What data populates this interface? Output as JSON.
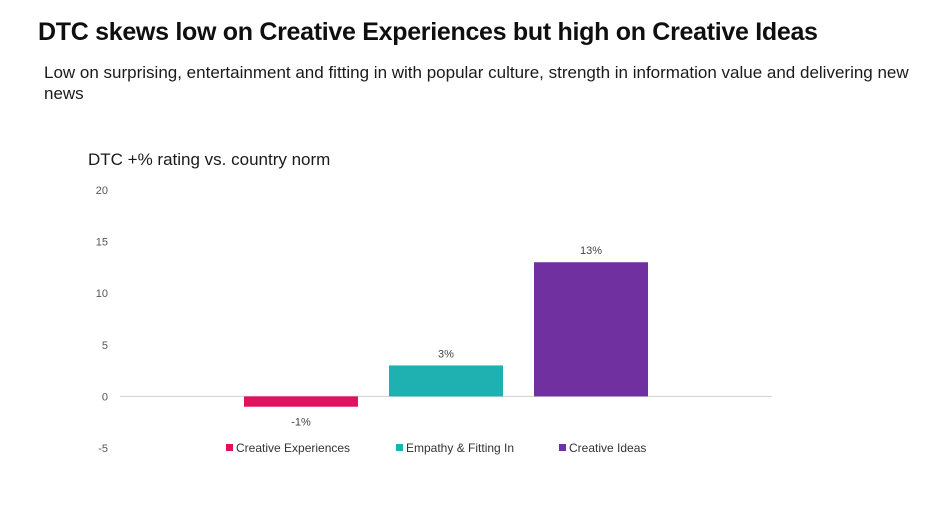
{
  "header": {
    "title": "DTC skews low on Creative  Experiences but high on Creative Ideas",
    "subtitle": "Low on surprising, entertainment and fitting in with popular culture, strength in information value and delivering new news"
  },
  "chart_data": {
    "type": "bar",
    "title": "DTC +% rating vs. country norm",
    "xlabel": "",
    "ylabel": "",
    "ylim": [
      -5,
      20
    ],
    "yticks": [
      20,
      15,
      10,
      5,
      0,
      -5
    ],
    "grid": false,
    "legend_position": "bottom",
    "series": [
      {
        "name": "Creative Experiences",
        "value": -1,
        "label": "-1%",
        "color": "#E0115F"
      },
      {
        "name": "Empathy & Fitting In",
        "value": 3,
        "label": "3%",
        "color": "#1FB1B1"
      },
      {
        "name": "Creative Ideas",
        "value": 13,
        "label": "13%",
        "color": "#7030A0"
      }
    ]
  }
}
